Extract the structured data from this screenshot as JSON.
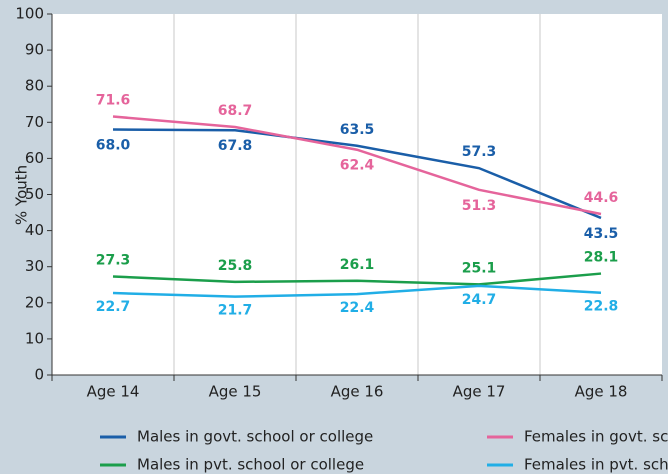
{
  "chart_data": {
    "type": "line",
    "categories": [
      "Age 14",
      "Age 15",
      "Age 16",
      "Age 17",
      "Age 18"
    ],
    "series": [
      {
        "name": "Males in govt. school or college",
        "color": "#1a5ea8",
        "values": [
          68.0,
          67.8,
          63.5,
          57.3,
          43.5
        ],
        "value_labels": [
          "68.0",
          "67.8",
          "63.5",
          "57.3",
          "43.5"
        ]
      },
      {
        "name": "Females in govt. school or college",
        "color": "#e5649b",
        "values": [
          71.6,
          68.7,
          62.4,
          51.3,
          44.6
        ],
        "value_labels": [
          "71.6",
          "68.7",
          "62.4",
          "51.3",
          "44.6"
        ]
      },
      {
        "name": "Males in pvt. school or college",
        "color": "#1b9e4b",
        "values": [
          27.3,
          25.8,
          26.1,
          25.1,
          28.1
        ],
        "value_labels": [
          "27.3",
          "25.8",
          "26.1",
          "25.1",
          "28.1"
        ]
      },
      {
        "name": "Females in pvt. school or college",
        "color": "#21aee6",
        "values": [
          22.7,
          21.7,
          22.4,
          24.7,
          22.8
        ],
        "value_labels": [
          "22.7",
          "21.7",
          "22.4",
          "24.7",
          "22.8"
        ]
      }
    ],
    "ylabel": "% Youth",
    "ylim": [
      0,
      100
    ],
    "yticks": [
      0,
      10,
      20,
      30,
      40,
      50,
      60,
      70,
      80,
      90,
      100
    ],
    "grid": "x",
    "legend": "bottom"
  }
}
